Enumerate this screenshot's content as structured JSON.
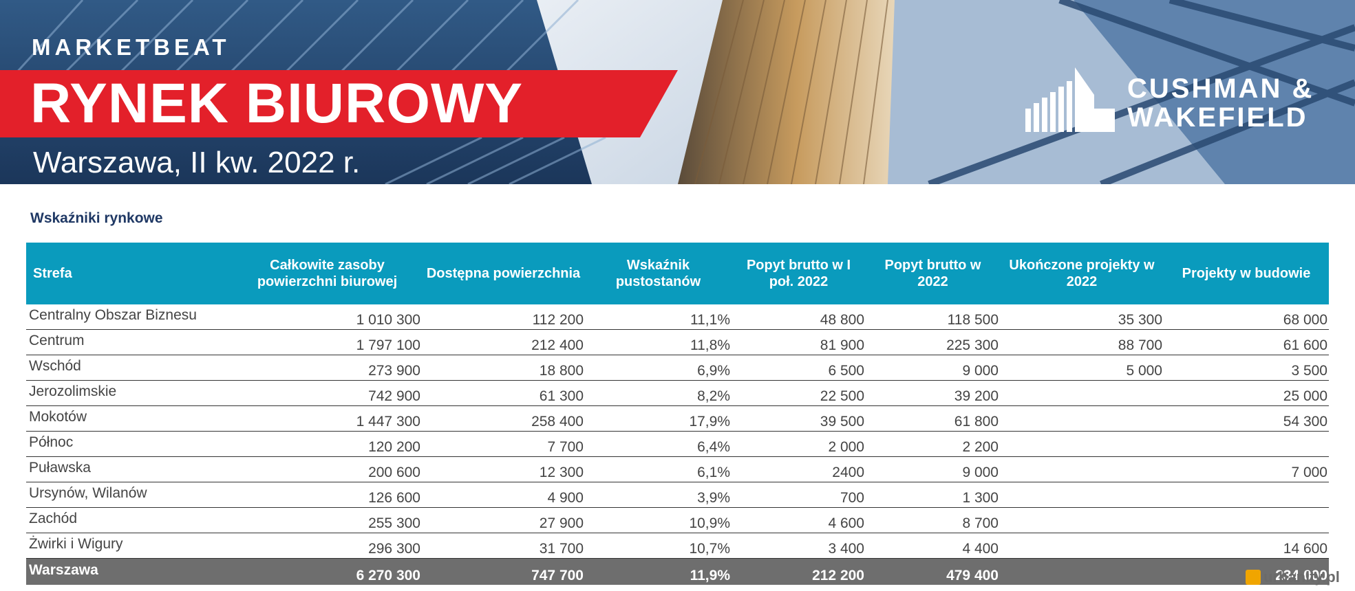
{
  "header": {
    "series": "MARKETBEAT",
    "title": "RYNEK BIUROWY",
    "subtitle": "Warszawa, II kw. 2022 r.",
    "brand_line1": "CUSHMAN &",
    "brand_line2": "WAKEFIELD",
    "accent_color": "#e3202a"
  },
  "section_title": "Wskaźniki  rynkowe",
  "table": {
    "header_color": "#0a9bbd",
    "columns": [
      "Strefa",
      "Całkowite zasoby powierzchni biurowej",
      "Dostępna powierzchnia",
      "Wskaźnik pustostanów",
      "Popyt brutto w I poł. 2022",
      "Popyt brutto w 2022",
      "Ukończone projekty w 2022",
      "Projekty w budowie"
    ],
    "rows": [
      [
        "Centralny Obszar Biznesu",
        "1 010 300",
        "112 200",
        "11,1%",
        "48 800",
        "118 500",
        "35 300",
        "68 000"
      ],
      [
        "Centrum",
        "1 797 100",
        "212 400",
        "11,8%",
        "81 900",
        "225 300",
        "88 700",
        "61 600"
      ],
      [
        "Wschód",
        "273 900",
        "18 800",
        "6,9%",
        "6 500",
        "9 000",
        "5 000",
        "3 500"
      ],
      [
        "Jerozolimskie",
        "742 900",
        "61 300",
        "8,2%",
        "22 500",
        "39 200",
        "",
        "25 000"
      ],
      [
        "Mokotów",
        "1 447 300",
        "258 400",
        "17,9%",
        "39 500",
        "61 800",
        "",
        "54 300"
      ],
      [
        "Północ",
        "120 200",
        "7 700",
        "6,4%",
        "2 000",
        "2 200",
        "",
        ""
      ],
      [
        "Puławska",
        "200 600",
        "12 300",
        "6,1%",
        "2400",
        "9 000",
        "",
        "7 000"
      ],
      [
        "Ursynów, Wilanów",
        "126 600",
        "4 900",
        "3,9%",
        "700",
        "1 300",
        "",
        ""
      ],
      [
        "Zachód",
        "255 300",
        "27 900",
        "10,9%",
        "4 600",
        "8 700",
        "",
        ""
      ],
      [
        "Żwirki i Wigury",
        "296 300",
        "31 700",
        "10,7%",
        "3 400",
        "4 400",
        "",
        "14 600"
      ]
    ],
    "total": [
      "Warszawa",
      "6 270 300",
      "747 700",
      "11,9%",
      "212 200",
      "479 400",
      "",
      "234 000"
    ]
  },
  "watermark": "urbanity.pl"
}
